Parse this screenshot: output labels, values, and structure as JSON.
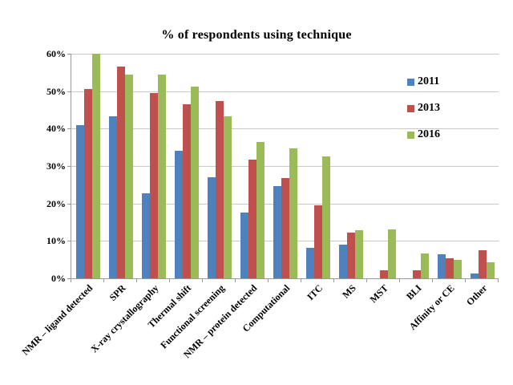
{
  "chart_data": {
    "type": "bar",
    "title": "% of respondents using technique",
    "categories": [
      "NMR – ligand detected",
      "SPR",
      "X-ray crystallography",
      "Thermal shift",
      "Functional screening",
      "NMR – protein detected",
      "Computational",
      "ITC",
      "MS",
      "MST",
      "BLI",
      "Affinity or CE",
      "Other"
    ],
    "series": [
      {
        "name": "2011",
        "color": "#4F81BD",
        "values": [
          41,
          43.3,
          22.8,
          34,
          27,
          17.5,
          24.6,
          8.1,
          9,
          0,
          0,
          6.4,
          1.2
        ]
      },
      {
        "name": "2013",
        "color": "#C0504D",
        "values": [
          50.5,
          56.6,
          49.4,
          46.4,
          47.4,
          31.8,
          26.7,
          19.4,
          12.3,
          2.2,
          2.2,
          5.4,
          7.4
        ]
      },
      {
        "name": "2016",
        "color": "#9BBB59",
        "values": [
          60,
          54.5,
          54.5,
          51.2,
          43.2,
          36.5,
          34.8,
          32.5,
          12.8,
          13,
          6.7,
          5,
          4.3
        ]
      }
    ],
    "xlabel": "",
    "ylabel": "",
    "ylim": [
      0,
      60
    ],
    "y_tick_step": 10,
    "y_ticks": [
      "0%",
      "10%",
      "20%",
      "30%",
      "40%",
      "50%",
      "60%"
    ],
    "grid": true,
    "legend_position": "inside-top-right",
    "colors": {
      "background": "#ffffff",
      "gridline": "#c9c9c9",
      "axis": "#9a9a9a",
      "text": "#000000"
    }
  }
}
